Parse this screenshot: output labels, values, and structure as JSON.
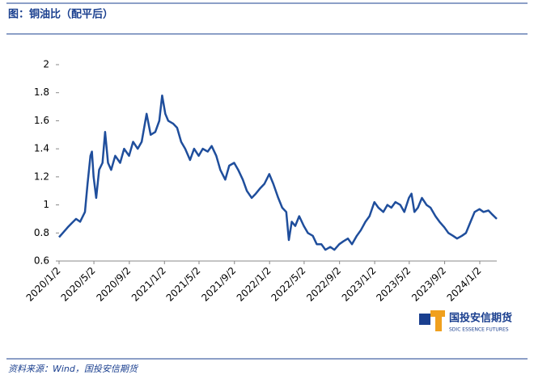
{
  "chart_data": {
    "type": "line",
    "title": "图：铜油比（配平后）",
    "source": "资料来源：Wind，国投安信期货",
    "logo": {
      "name": "国投安信期货",
      "subtitle": "SDIC ESSENCE FUTURES"
    },
    "x": [
      "2020/1/2",
      "2020/1/15",
      "2020/2/1",
      "2020/2/15",
      "2020/3/1",
      "2020/3/15",
      "2020/4/1",
      "2020/4/10",
      "2020/4/20",
      "2020/4/25",
      "2020/5/1",
      "2020/5/10",
      "2020/5/20",
      "2020/6/1",
      "2020/6/10",
      "2020/6/20",
      "2020/7/1",
      "2020/7/15",
      "2020/8/1",
      "2020/8/15",
      "2020/9/1",
      "2020/9/15",
      "2020/10/1",
      "2020/10/15",
      "2020/11/1",
      "2020/11/15",
      "2020/12/1",
      "2020/12/15",
      "2020/12/25",
      "2021/1/5",
      "2021/1/15",
      "2021/2/1",
      "2021/2/15",
      "2021/3/1",
      "2021/3/15",
      "2021/4/1",
      "2021/4/15",
      "2021/5/1",
      "2021/5/15",
      "2021/6/1",
      "2021/6/15",
      "2021/7/1",
      "2021/7/15",
      "2021/8/1",
      "2021/8/15",
      "2021/9/1",
      "2021/9/15",
      "2021/10/1",
      "2021/10/15",
      "2021/11/1",
      "2021/11/15",
      "2021/12/1",
      "2021/12/15",
      "2022/1/1",
      "2022/1/15",
      "2022/2/1",
      "2022/2/15",
      "2022/3/1",
      "2022/3/10",
      "2022/3/20",
      "2022/4/1",
      "2022/4/15",
      "2022/5/1",
      "2022/5/15",
      "2022/6/1",
      "2022/6/15",
      "2022/7/1",
      "2022/7/15",
      "2022/8/1",
      "2022/8/15",
      "2022/9/1",
      "2022/9/15",
      "2022/10/1",
      "2022/10/15",
      "2022/11/1",
      "2022/11/15",
      "2022/12/1",
      "2022/12/15",
      "2023/1/1",
      "2023/1/15",
      "2023/2/1",
      "2023/2/15",
      "2023/3/1",
      "2023/3/15",
      "2023/4/1",
      "2023/4/15",
      "2023/5/1",
      "2023/5/10",
      "2023/5/20",
      "2023/6/1",
      "2023/6/15",
      "2023/7/1",
      "2023/7/15",
      "2023/8/1",
      "2023/8/15",
      "2023/9/1",
      "2023/9/15",
      "2023/10/1",
      "2023/10/15",
      "2023/11/1",
      "2023/11/15",
      "2023/12/1",
      "2023/12/15",
      "2024/1/1",
      "2024/1/15",
      "2024/2/1",
      "2024/2/15",
      "2024/3/1"
    ],
    "series": [
      {
        "name": "铜油比",
        "color": "#1f4e9c",
        "values": [
          0.77,
          0.8,
          0.84,
          0.87,
          0.9,
          0.88,
          0.95,
          1.15,
          1.35,
          1.38,
          1.2,
          1.05,
          1.25,
          1.3,
          1.52,
          1.3,
          1.25,
          1.35,
          1.3,
          1.4,
          1.35,
          1.45,
          1.4,
          1.45,
          1.65,
          1.5,
          1.52,
          1.6,
          1.78,
          1.65,
          1.6,
          1.58,
          1.55,
          1.45,
          1.4,
          1.32,
          1.4,
          1.35,
          1.4,
          1.38,
          1.42,
          1.35,
          1.25,
          1.18,
          1.28,
          1.3,
          1.25,
          1.18,
          1.1,
          1.05,
          1.08,
          1.12,
          1.15,
          1.22,
          1.15,
          1.05,
          0.98,
          0.95,
          0.75,
          0.88,
          0.85,
          0.92,
          0.85,
          0.8,
          0.78,
          0.72,
          0.72,
          0.68,
          0.7,
          0.68,
          0.72,
          0.74,
          0.76,
          0.72,
          0.78,
          0.82,
          0.88,
          0.92,
          1.02,
          0.98,
          0.95,
          1.0,
          0.98,
          1.02,
          1.0,
          0.95,
          1.05,
          1.08,
          0.95,
          0.98,
          1.05,
          1.0,
          0.98,
          0.92,
          0.88,
          0.84,
          0.8,
          0.78,
          0.76,
          0.78,
          0.8,
          0.88,
          0.95,
          0.97,
          0.95,
          0.96,
          0.93,
          0.9
        ]
      }
    ],
    "xlim": [
      "2020/1/2",
      "2024/3/1"
    ],
    "xticks": [
      "2020/1/2",
      "2020/5/2",
      "2020/9/2",
      "2021/1/2",
      "2021/5/2",
      "2021/9/2",
      "2022/1/2",
      "2022/5/2",
      "2022/9/2",
      "2023/1/2",
      "2023/5/2",
      "2023/9/2",
      "2024/1/2"
    ],
    "ylim": [
      0.6,
      2
    ],
    "yticks": [
      0.6,
      0.8,
      1,
      1.2,
      1.4,
      1.6,
      1.8,
      2
    ],
    "grid": false
  }
}
